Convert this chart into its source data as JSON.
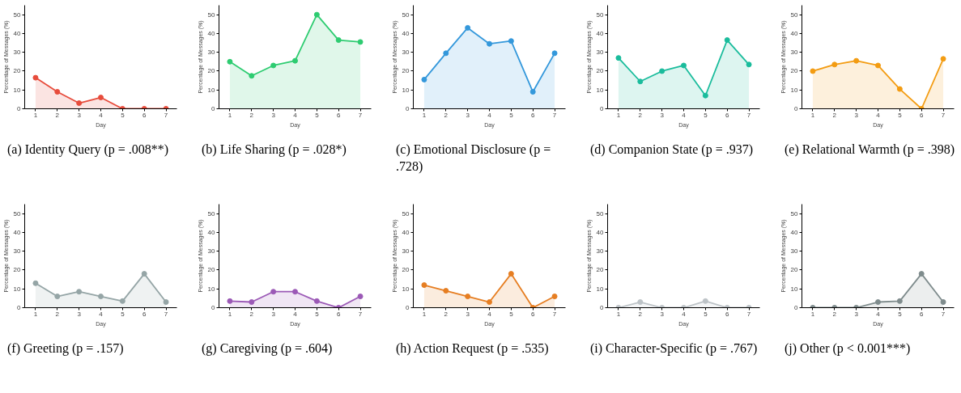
{
  "chart_data": [
    {
      "type": "area",
      "title": "(a) Identity Query (p = .008**)",
      "xlabel": "Day",
      "ylabel": "Percentage of Messages (%)",
      "x": [
        1,
        2,
        3,
        4,
        5,
        6,
        7
      ],
      "series": [
        {
          "color": "#e74c3c",
          "values": [
            16.5,
            9,
            3,
            6,
            0,
            0,
            0
          ]
        }
      ],
      "xlim": [
        0.5,
        7.5
      ],
      "xticks": [
        1,
        2,
        3,
        4,
        5,
        6,
        7
      ],
      "ylim": [
        0,
        55
      ],
      "yticks": [
        0,
        10,
        20,
        30,
        40,
        50
      ],
      "grid": false,
      "marker": "circle"
    },
    {
      "type": "area",
      "title": "(b) Life Sharing (p = .028*)",
      "xlabel": "Day",
      "ylabel": "Percentage of Messages (%)",
      "x": [
        1,
        2,
        3,
        4,
        5,
        6,
        7
      ],
      "series": [
        {
          "color": "#2ecc71",
          "values": [
            25,
            17.5,
            23,
            25.5,
            50,
            36.5,
            35.5
          ]
        }
      ],
      "xlim": [
        0.5,
        7.5
      ],
      "xticks": [
        1,
        2,
        3,
        4,
        5,
        6,
        7
      ],
      "ylim": [
        0,
        55
      ],
      "yticks": [
        0,
        10,
        20,
        30,
        40,
        50
      ],
      "grid": false,
      "marker": "circle"
    },
    {
      "type": "area",
      "title": "(c) Emotional Disclosure (p = .728)",
      "xlabel": "Day",
      "ylabel": "Percentage of Messages (%)",
      "x": [
        1,
        2,
        3,
        4,
        5,
        6,
        7
      ],
      "series": [
        {
          "color": "#3498db",
          "values": [
            15.5,
            29.5,
            43,
            34.5,
            36,
            9,
            29.5
          ]
        }
      ],
      "xlim": [
        0.5,
        7.5
      ],
      "xticks": [
        1,
        2,
        3,
        4,
        5,
        6,
        7
      ],
      "ylim": [
        0,
        55
      ],
      "yticks": [
        0,
        10,
        20,
        30,
        40,
        50
      ],
      "grid": false,
      "marker": "circle"
    },
    {
      "type": "area",
      "title": "(d) Companion State (p = .937)",
      "xlabel": "Day",
      "ylabel": "Percentage of Messages (%)",
      "x": [
        1,
        2,
        3,
        4,
        5,
        6,
        7
      ],
      "series": [
        {
          "color": "#1abc9c",
          "values": [
            27,
            14.5,
            20,
            23,
            7,
            36.5,
            23.5
          ]
        }
      ],
      "xlim": [
        0.5,
        7.5
      ],
      "xticks": [
        1,
        2,
        3,
        4,
        5,
        6,
        7
      ],
      "ylim": [
        0,
        55
      ],
      "yticks": [
        0,
        10,
        20,
        30,
        40,
        50
      ],
      "grid": false,
      "marker": "circle"
    },
    {
      "type": "area",
      "title": "(e) Relational Warmth (p = .398)",
      "xlabel": "Day",
      "ylabel": "Percentage of Messages (%)",
      "x": [
        1,
        2,
        3,
        4,
        5,
        6,
        7
      ],
      "series": [
        {
          "color": "#f39c12",
          "values": [
            20,
            23.5,
            25.5,
            23,
            10.5,
            0,
            26.5
          ]
        }
      ],
      "xlim": [
        0.5,
        7.5
      ],
      "xticks": [
        1,
        2,
        3,
        4,
        5,
        6,
        7
      ],
      "ylim": [
        0,
        55
      ],
      "yticks": [
        0,
        10,
        20,
        30,
        40,
        50
      ],
      "grid": false,
      "marker": "circle"
    },
    {
      "type": "area",
      "title": "(f) Greeting (p = .157)",
      "xlabel": "Day",
      "ylabel": "Percentage of Messages (%)",
      "x": [
        1,
        2,
        3,
        4,
        5,
        6,
        7
      ],
      "series": [
        {
          "color": "#95a5a6",
          "values": [
            13,
            6,
            8.5,
            6,
            3.5,
            18,
            3
          ]
        }
      ],
      "xlim": [
        0.5,
        7.5
      ],
      "xticks": [
        1,
        2,
        3,
        4,
        5,
        6,
        7
      ],
      "ylim": [
        0,
        55
      ],
      "yticks": [
        0,
        10,
        20,
        30,
        40,
        50
      ],
      "grid": false,
      "marker": "circle"
    },
    {
      "type": "area",
      "title": "(g) Caregiving (p = .604)",
      "xlabel": "Day",
      "ylabel": "Percentage of Messages (%)",
      "x": [
        1,
        2,
        3,
        4,
        5,
        6,
        7
      ],
      "series": [
        {
          "color": "#9b59b6",
          "values": [
            3.5,
            3,
            8.5,
            8.5,
            3.5,
            0,
            6
          ]
        }
      ],
      "xlim": [
        0.5,
        7.5
      ],
      "xticks": [
        1,
        2,
        3,
        4,
        5,
        6,
        7
      ],
      "ylim": [
        0,
        55
      ],
      "yticks": [
        0,
        10,
        20,
        30,
        40,
        50
      ],
      "grid": false,
      "marker": "circle"
    },
    {
      "type": "area",
      "title": "(h) Action Request (p = .535)",
      "xlabel": "Day",
      "ylabel": "Percentage of Messages (%)",
      "x": [
        1,
        2,
        3,
        4,
        5,
        6,
        7
      ],
      "series": [
        {
          "color": "#e67e22",
          "values": [
            12,
            9,
            6,
            3,
            18,
            0,
            6
          ]
        }
      ],
      "xlim": [
        0.5,
        7.5
      ],
      "xticks": [
        1,
        2,
        3,
        4,
        5,
        6,
        7
      ],
      "ylim": [
        0,
        55
      ],
      "yticks": [
        0,
        10,
        20,
        30,
        40,
        50
      ],
      "grid": false,
      "marker": "circle"
    },
    {
      "type": "area",
      "title": "(i) Character-Specific (p = .767)",
      "xlabel": "Day",
      "ylabel": "Percentage of Messages (%)",
      "x": [
        1,
        2,
        3,
        4,
        5,
        6,
        7
      ],
      "series": [
        {
          "color": "#bdc3c7",
          "values": [
            0,
            3,
            0,
            0,
            3.5,
            0,
            0
          ]
        }
      ],
      "xlim": [
        0.5,
        7.5
      ],
      "xticks": [
        1,
        2,
        3,
        4,
        5,
        6,
        7
      ],
      "ylim": [
        0,
        55
      ],
      "yticks": [
        0,
        10,
        20,
        30,
        40,
        50
      ],
      "grid": false,
      "marker": "circle"
    },
    {
      "type": "area",
      "title": "(j) Other (p < 0.001***)",
      "xlabel": "Day",
      "ylabel": "Percentage of Messages (%)",
      "x": [
        1,
        2,
        3,
        4,
        5,
        6,
        7
      ],
      "series": [
        {
          "color": "#7f8c8d",
          "values": [
            0,
            0,
            0,
            3,
            3.5,
            18,
            3
          ]
        }
      ],
      "xlim": [
        0.5,
        7.5
      ],
      "xticks": [
        1,
        2,
        3,
        4,
        5,
        6,
        7
      ],
      "ylim": [
        0,
        55
      ],
      "yticks": [
        0,
        10,
        20,
        30,
        40,
        50
      ],
      "grid": false,
      "marker": "circle"
    }
  ]
}
